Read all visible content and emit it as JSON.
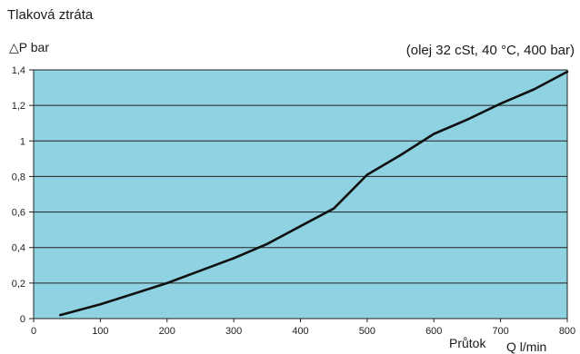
{
  "chart_data": {
    "type": "line",
    "title": "Tlaková ztráta",
    "subtitle": "(olej 32 cSt, 40 °C, 400 bar)",
    "ylabel": "△P bar",
    "xlabel_parts": [
      "Průtok",
      "Q l/min"
    ],
    "xlim": [
      0,
      800
    ],
    "ylim": [
      0,
      1.4
    ],
    "x_ticks": [
      "0",
      "100",
      "200",
      "300",
      "400",
      "500",
      "600",
      "700",
      "800"
    ],
    "y_ticks": [
      "0",
      "0,2",
      "0,4",
      "0,6",
      "0,8",
      "1",
      "1,2",
      "1,4"
    ],
    "plot_background": "#8fd3e2",
    "line_color": "#111111",
    "grid": "horizontal",
    "series": [
      {
        "x": [
          40,
          100,
          150,
          200,
          250,
          300,
          350,
          400,
          450,
          500,
          550,
          600,
          650,
          700,
          750,
          800
        ],
        "values": [
          0.02,
          0.08,
          0.14,
          0.2,
          0.27,
          0.34,
          0.42,
          0.52,
          0.62,
          0.81,
          0.92,
          1.04,
          1.12,
          1.21,
          1.29,
          1.39
        ]
      }
    ]
  }
}
